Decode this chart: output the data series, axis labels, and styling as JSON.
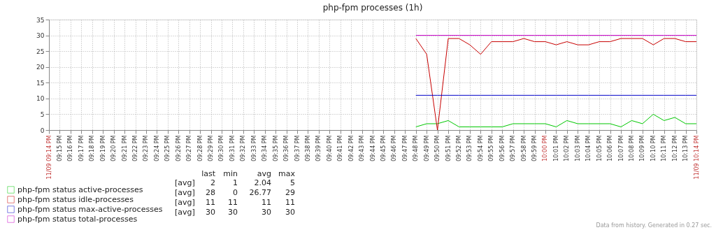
{
  "chart_data": {
    "type": "line",
    "title": "php-fpm processes (1h)",
    "x": [
      21.8,
      21.8167,
      21.8333,
      21.85,
      21.8667,
      21.8833,
      21.9,
      21.9167,
      21.9333,
      21.95,
      21.9667,
      21.9833,
      22.0,
      22.0167,
      22.0333,
      22.05,
      22.0667,
      22.0833,
      22.1,
      22.1167,
      22.1333,
      22.15,
      22.1667,
      22.1833,
      22.2,
      22.2167,
      22.2333
    ],
    "series": [
      {
        "name": "php-fpm status active-processes",
        "color": "#00c800",
        "values": [
          1,
          2,
          2,
          3,
          1,
          1,
          1,
          1,
          1,
          2,
          2,
          2,
          2,
          1,
          3,
          2,
          2,
          2,
          2,
          1,
          3,
          2,
          5,
          3,
          4,
          2,
          2
        ]
      },
      {
        "name": "php-fpm status idle-processes",
        "color": "#c80000",
        "values": [
          29,
          24,
          0,
          29,
          29,
          27,
          24,
          28,
          28,
          28,
          29,
          28,
          28,
          27,
          28,
          27,
          27,
          28,
          28,
          29,
          29,
          29,
          27,
          29,
          29,
          28,
          28
        ]
      },
      {
        "name": "php-fpm status max-active-processes",
        "color": "#0000c8",
        "values": [
          11,
          11,
          11,
          11,
          11,
          11,
          11,
          11,
          11,
          11,
          11,
          11,
          11,
          11,
          11,
          11,
          11,
          11,
          11,
          11,
          11,
          11,
          11,
          11,
          11,
          11,
          11
        ]
      },
      {
        "name": "php-fpm status total-processes",
        "color": "#c800c8",
        "values": [
          30,
          30,
          30,
          30,
          30,
          30,
          30,
          30,
          30,
          30,
          30,
          30,
          30,
          30,
          30,
          30,
          30,
          30,
          30,
          30,
          30,
          30,
          30,
          30,
          30,
          30,
          30
        ]
      }
    ],
    "xlim": [
      21.2333,
      22.2333
    ],
    "xticks": [
      {
        "value": 21.2333,
        "label": "11/09 09:14 PM"
      },
      {
        "value": 21.25,
        "label": "09:15 PM"
      },
      {
        "value": 21.2667,
        "label": "09:16 PM"
      },
      {
        "value": 21.2833,
        "label": "09:17 PM"
      },
      {
        "value": 21.3,
        "label": "09:18 PM"
      },
      {
        "value": 21.3167,
        "label": "09:19 PM"
      },
      {
        "value": 21.3333,
        "label": "09:20 PM"
      },
      {
        "value": 21.35,
        "label": "09:21 PM"
      },
      {
        "value": 21.3667,
        "label": "09:22 PM"
      },
      {
        "value": 21.3833,
        "label": "09:23 PM"
      },
      {
        "value": 21.4,
        "label": "09:24 PM"
      },
      {
        "value": 21.4167,
        "label": "09:25 PM"
      },
      {
        "value": 21.4333,
        "label": "09:26 PM"
      },
      {
        "value": 21.45,
        "label": "09:27 PM"
      },
      {
        "value": 21.4667,
        "label": "09:28 PM"
      },
      {
        "value": 21.4833,
        "label": "09:29 PM"
      },
      {
        "value": 21.5,
        "label": "09:30 PM"
      },
      {
        "value": 21.5167,
        "label": "09:31 PM"
      },
      {
        "value": 21.5333,
        "label": "09:32 PM"
      },
      {
        "value": 21.55,
        "label": "09:33 PM"
      },
      {
        "value": 21.5667,
        "label": "09:34 PM"
      },
      {
        "value": 21.5833,
        "label": "09:35 PM"
      },
      {
        "value": 21.6,
        "label": "09:36 PM"
      },
      {
        "value": 21.6167,
        "label": "09:37 PM"
      },
      {
        "value": 21.6333,
        "label": "09:38 PM"
      },
      {
        "value": 21.65,
        "label": "09:39 PM"
      },
      {
        "value": 21.6667,
        "label": "09:40 PM"
      },
      {
        "value": 21.6833,
        "label": "09:41 PM"
      },
      {
        "value": 21.7,
        "label": "09:42 PM"
      },
      {
        "value": 21.7167,
        "label": "09:43 PM"
      },
      {
        "value": 21.7333,
        "label": "09:44 PM"
      },
      {
        "value": 21.75,
        "label": "09:45 PM"
      },
      {
        "value": 21.7667,
        "label": "09:46 PM"
      },
      {
        "value": 21.7833,
        "label": "09:47 PM"
      },
      {
        "value": 21.8,
        "label": "09:48 PM"
      },
      {
        "value": 21.8167,
        "label": "09:49 PM"
      },
      {
        "value": 21.8333,
        "label": "09:50 PM"
      },
      {
        "value": 21.85,
        "label": "09:51 PM"
      },
      {
        "value": 21.8667,
        "label": "09:52 PM"
      },
      {
        "value": 21.8833,
        "label": "09:53 PM"
      },
      {
        "value": 21.9,
        "label": "09:54 PM"
      },
      {
        "value": 21.9167,
        "label": "09:55 PM"
      },
      {
        "value": 21.9333,
        "label": "09:56 PM"
      },
      {
        "value": 21.95,
        "label": "09:57 PM"
      },
      {
        "value": 21.9667,
        "label": "09:58 PM"
      },
      {
        "value": 21.9833,
        "label": "09:59 PM"
      },
      {
        "value": 22.0,
        "label": "10:00 PM"
      },
      {
        "value": 22.0167,
        "label": "10:01 PM"
      },
      {
        "value": 22.0333,
        "label": "10:02 PM"
      },
      {
        "value": 22.05,
        "label": "10:03 PM"
      },
      {
        "value": 22.0667,
        "label": "10:04 PM"
      },
      {
        "value": 22.0833,
        "label": "10:05 PM"
      },
      {
        "value": 22.1,
        "label": "10:06 PM"
      },
      {
        "value": 22.1167,
        "label": "10:07 PM"
      },
      {
        "value": 22.1333,
        "label": "10:08 PM"
      },
      {
        "value": 22.15,
        "label": "10:09 PM"
      },
      {
        "value": 22.1667,
        "label": "10:10 PM"
      },
      {
        "value": 22.1833,
        "label": "10:11 PM"
      },
      {
        "value": 22.2,
        "label": "10:12 PM"
      },
      {
        "value": 22.2167,
        "label": "10:13 PM"
      },
      {
        "value": 22.2333,
        "label": "11/09 10:14 PM"
      }
    ],
    "ylim": [
      0,
      35
    ],
    "yticks": [
      0,
      5,
      10,
      15,
      20,
      25,
      30,
      35
    ],
    "grid": true,
    "legend": "bottom left",
    "marker": "none",
    "line_style": "solid",
    "annotations": [
      "last min avg max",
      "[avg] 2 1 2.04 5",
      "[avg] 28 0 26.77 29",
      "[avg] 11 11 11 11",
      "[avg] 30 30 30 30",
      "Data from history. Generated in 0.27 sec."
    ]
  }
}
